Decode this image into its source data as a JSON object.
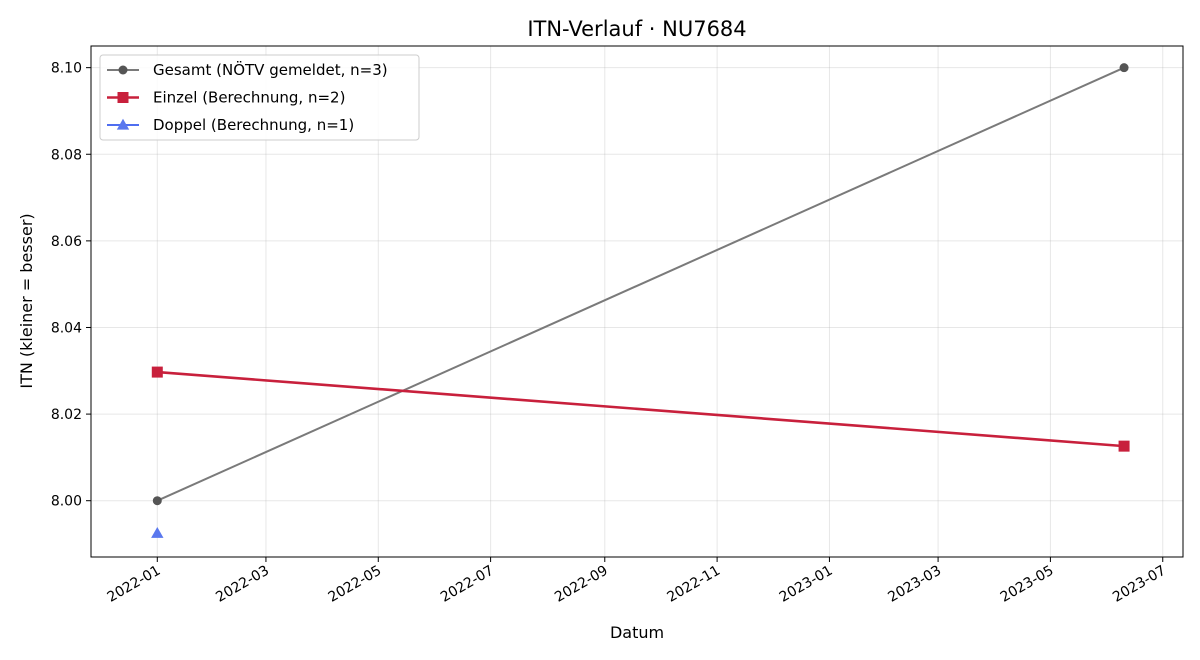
{
  "chart_data": {
    "type": "line",
    "title": "ITN-Verlauf · NU7684",
    "xlabel": "Datum",
    "ylabel": "ITN  (kleiner = besser)",
    "x_type": "date",
    "xlim": [
      "2021-11-26",
      "2023-07-12"
    ],
    "ylim": [
      7.987,
      8.105
    ],
    "x_ticks": [
      "2022-01",
      "2022-03",
      "2022-05",
      "2022-07",
      "2022-09",
      "2022-11",
      "2023-01",
      "2023-03",
      "2023-05",
      "2023-07"
    ],
    "y_ticks": [
      "8.00",
      "8.02",
      "8.04",
      "8.06",
      "8.08",
      "8.10"
    ],
    "grid": true,
    "legend_position": "top-left",
    "series": [
      {
        "name": "Gesamt (NÖTV gemeldet, n=3)",
        "color": "#7a7a7a",
        "marker_color": "#555555",
        "marker": "circle",
        "points": [
          {
            "x": "2022-01-01",
            "y": 8.0
          },
          {
            "x": "2023-06-10",
            "y": 8.1
          }
        ]
      },
      {
        "name": "Einzel (Berechnung, n=2)",
        "color": "#c8203c",
        "marker_color": "#c8203c",
        "marker": "square",
        "points": [
          {
            "x": "2022-01-01",
            "y": 8.0297
          },
          {
            "x": "2023-06-10",
            "y": 8.0126
          }
        ]
      },
      {
        "name": "Doppel (Berechnung, n=1)",
        "color": "#4f6ef0",
        "marker_color": "#5a78ee",
        "marker": "triangle",
        "points": [
          {
            "x": "2022-01-01",
            "y": 7.9925
          }
        ]
      }
    ]
  }
}
